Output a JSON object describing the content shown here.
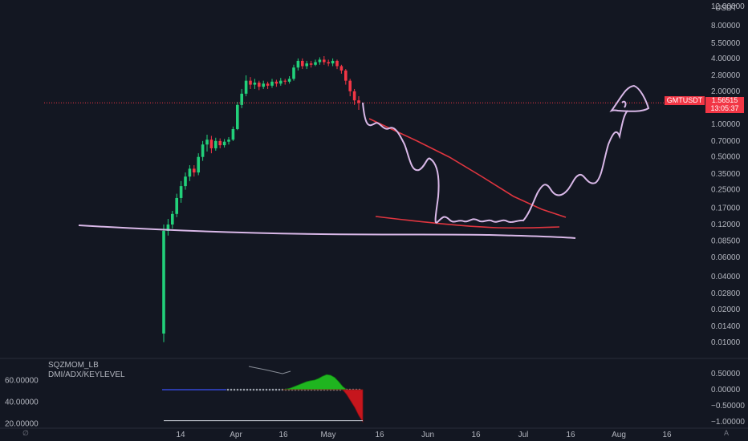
{
  "chart_data": [
    {
      "type": "candlestick",
      "symbol": "GMTUSDT",
      "y_scale": "log",
      "ylim": [
        0.009,
        12.0
      ],
      "y_ticks": [
        "12.00000",
        "8.00000",
        "5.50000",
        "4.00000",
        "2.80000",
        "2.00000",
        "1.00000",
        "0.70000",
        "0.50000",
        "0.35000",
        "0.25000",
        "0.17000",
        "0.12000",
        "0.08500",
        "0.06000",
        "0.04000",
        "0.02800",
        "0.02000",
        "0.01400",
        "0.01000"
      ],
      "y_tick_values": [
        12,
        8,
        5.5,
        4,
        2.8,
        2,
        1,
        0.7,
        0.5,
        0.35,
        0.25,
        0.17,
        0.12,
        0.085,
        0.06,
        0.04,
        0.028,
        0.02,
        0.014,
        0.01
      ],
      "x_ticks": [
        "14",
        "Apr",
        "16",
        "May",
        "16",
        "Jun",
        "16",
        "Jul",
        "16",
        "Aug",
        "16"
      ],
      "last_price": "1.56515",
      "countdown": "13:05:37",
      "currency": "USDT",
      "colors": {
        "up": "#26a69a",
        "up_bright": "#22d07a",
        "down": "#f23645",
        "drawing": "#d9b8e8",
        "trendline": "#e0353f"
      },
      "candles": [
        [
          0.012,
          0.105,
          0.01,
          0.12
        ],
        [
          0.105,
          0.12,
          0.095,
          0.135
        ],
        [
          0.12,
          0.15,
          0.11,
          0.16
        ],
        [
          0.15,
          0.21,
          0.14,
          0.23
        ],
        [
          0.21,
          0.27,
          0.19,
          0.3
        ],
        [
          0.27,
          0.33,
          0.25,
          0.36
        ],
        [
          0.33,
          0.39,
          0.3,
          0.42
        ],
        [
          0.39,
          0.36,
          0.33,
          0.42
        ],
        [
          0.36,
          0.5,
          0.34,
          0.54
        ],
        [
          0.5,
          0.65,
          0.46,
          0.7
        ],
        [
          0.65,
          0.72,
          0.56,
          0.8
        ],
        [
          0.72,
          0.6,
          0.54,
          0.78
        ],
        [
          0.6,
          0.7,
          0.57,
          0.75
        ],
        [
          0.7,
          0.64,
          0.6,
          0.74
        ],
        [
          0.64,
          0.69,
          0.61,
          0.73
        ],
        [
          0.69,
          0.72,
          0.65,
          0.76
        ],
        [
          0.72,
          0.9,
          0.7,
          0.95
        ],
        [
          0.9,
          1.5,
          0.88,
          1.6
        ],
        [
          1.5,
          1.9,
          1.4,
          2.1
        ],
        [
          1.9,
          2.5,
          1.8,
          2.8
        ],
        [
          2.5,
          2.3,
          2.1,
          2.7
        ],
        [
          2.3,
          2.4,
          2.1,
          2.6
        ],
        [
          2.4,
          2.2,
          2.05,
          2.5
        ],
        [
          2.2,
          2.35,
          2.1,
          2.5
        ],
        [
          2.35,
          2.25,
          2.1,
          2.45
        ],
        [
          2.25,
          2.45,
          2.15,
          2.6
        ],
        [
          2.45,
          2.35,
          2.2,
          2.55
        ],
        [
          2.35,
          2.5,
          2.25,
          2.65
        ],
        [
          2.5,
          2.45,
          2.3,
          2.6
        ],
        [
          2.45,
          2.6,
          2.35,
          2.75
        ],
        [
          2.6,
          3.3,
          2.5,
          3.5
        ],
        [
          3.3,
          3.8,
          3.1,
          4.0
        ],
        [
          3.8,
          3.4,
          3.2,
          4.0
        ],
        [
          3.4,
          3.6,
          3.2,
          3.8
        ],
        [
          3.6,
          3.5,
          3.3,
          3.8
        ],
        [
          3.5,
          3.7,
          3.4,
          3.9
        ],
        [
          3.7,
          3.9,
          3.5,
          4.1
        ],
        [
          3.9,
          3.7,
          3.5,
          4.2
        ],
        [
          3.7,
          3.6,
          3.4,
          3.9
        ],
        [
          3.6,
          3.8,
          3.4,
          4.0
        ],
        [
          3.8,
          3.4,
          3.2,
          3.9
        ],
        [
          3.4,
          3.1,
          2.9,
          3.5
        ],
        [
          3.1,
          2.5,
          2.3,
          3.2
        ],
        [
          2.5,
          2.0,
          1.8,
          2.6
        ],
        [
          2.0,
          1.65,
          1.5,
          2.1
        ],
        [
          1.65,
          1.565,
          1.35,
          1.8
        ]
      ]
    },
    {
      "type": "area",
      "name": "SQZMOM_LB",
      "ylim": [
        -1.1,
        0.7
      ],
      "y_ticks": [
        "0.50000",
        "0.00000",
        "−0.50000",
        "−1.00000"
      ],
      "y_tick_values": [
        0.5,
        0,
        -0.5,
        -1
      ],
      "values": [
        0.0,
        0.02,
        0.05,
        0.1,
        0.15,
        0.2,
        0.25,
        0.28,
        0.3,
        0.35,
        0.42,
        0.47,
        0.45,
        0.38,
        0.25,
        0.1,
        -0.15,
        -0.35,
        -0.55,
        -0.8,
        -1.0
      ]
    },
    {
      "type": "line",
      "name": "DMI/ADX/KEYLEVEL",
      "ylim": [
        19,
        72
      ],
      "y_ticks": [
        "60.00000",
        "40.00000",
        "20.00000"
      ],
      "y_tick_values": [
        60,
        40,
        20
      ],
      "key_level": 23
    }
  ],
  "indicators": {
    "title1": "SQZMOM_LB",
    "title2": "DMI/ADX/KEYLEVEL"
  },
  "tags": {
    "symbol": "GMTUSDT",
    "price": "1.56515",
    "countdown": "13:05:37"
  },
  "corners": {
    "left": "∅",
    "right": "A"
  }
}
